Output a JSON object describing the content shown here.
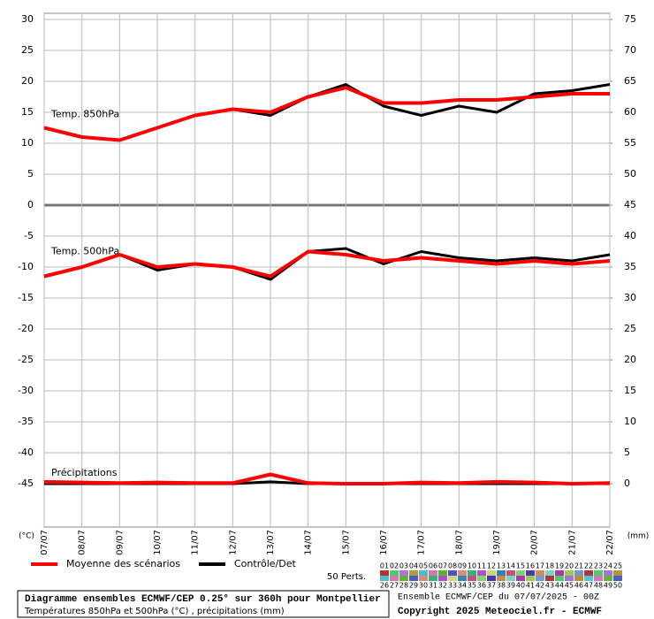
{
  "chart_data": {
    "type": "line",
    "categories": [
      "07/07",
      "08/07",
      "09/07",
      "10/07",
      "11/07",
      "12/07",
      "13/07",
      "14/07",
      "15/07",
      "16/07",
      "17/07",
      "18/07",
      "19/07",
      "20/07",
      "21/07",
      "22/07"
    ],
    "y_label": "(°C)",
    "y2_label": "(mm)",
    "ylim": [
      -52,
      31
    ],
    "yticks": [
      30,
      25,
      20,
      15,
      10,
      5,
      0,
      -5,
      -10,
      -15,
      -20,
      -25,
      -30,
      -35,
      -40,
      -45
    ],
    "y2lim": [
      -7,
      76
    ],
    "y2ticks": [
      75,
      70,
      65,
      60,
      55,
      50,
      45,
      40,
      35,
      30,
      25,
      20,
      15,
      10,
      5,
      0
    ],
    "grid": true,
    "panel_labels": [
      "Temp. 850hPa",
      "Temp. 500hPa",
      "Précipitations"
    ],
    "series": [
      {
        "name": "Moyenne des scénarios",
        "color": "#ff0000",
        "t850": [
          12.5,
          11,
          10.5,
          12.5,
          14.5,
          15.5,
          15,
          17.5,
          19,
          16.5,
          16.5,
          17,
          17,
          17.5,
          18,
          18
        ],
        "t500": [
          -11.5,
          -10,
          -8,
          -10,
          -9.5,
          -10,
          -11.5,
          -7.5,
          -8,
          -9,
          -8.5,
          -9,
          -9.5,
          -9,
          -9.5,
          -9
        ],
        "precip": [
          0.3,
          0.2,
          0.1,
          0.2,
          0.1,
          0.1,
          1.5,
          0.1,
          0,
          0,
          0.2,
          0.1,
          0.3,
          0.2,
          0,
          0.1
        ]
      },
      {
        "name": "Contrôle/Det",
        "color": "#000000",
        "t850": [
          12.5,
          11,
          10.5,
          12.5,
          14.5,
          15.5,
          14.5,
          17.5,
          19.5,
          16,
          14.5,
          16,
          15,
          18,
          18.5,
          19.5
        ],
        "t500": [
          -11.5,
          -10,
          -8,
          -10.5,
          -9.5,
          -10,
          -12,
          -7.5,
          -7,
          -9.5,
          -7.5,
          -8.5,
          -9,
          -8.5,
          -9,
          -8
        ],
        "precip": [
          0,
          0,
          0,
          0,
          0,
          0,
          0.3,
          0,
          0,
          0,
          0,
          0,
          0,
          0,
          0,
          0
        ]
      }
    ],
    "members_label": "50 Perts.",
    "members": [
      "01",
      "02",
      "03",
      "04",
      "05",
      "06",
      "07",
      "08",
      "09",
      "10",
      "11",
      "12",
      "13",
      "14",
      "15",
      "16",
      "17",
      "18",
      "19",
      "20",
      "21",
      "22",
      "23",
      "24",
      "25",
      "26",
      "27",
      "28",
      "29",
      "30",
      "31",
      "32",
      "33",
      "34",
      "35",
      "36",
      "37",
      "38",
      "39",
      "40",
      "41",
      "42",
      "43",
      "44",
      "45",
      "46",
      "47",
      "48",
      "49",
      "50"
    ],
    "footer": {
      "title": "Diagramme ensembles ECMWF/CEP 0.25° sur 360h pour Montpellier",
      "subtitle": "Températures 850hPa et 500hPa (°C) , précipitations (mm)",
      "run": "Ensemble ECMWF/CEP du 07/07/2025 - 00Z",
      "copyright": "Copyright 2025 Meteociel.fr - ECMWF"
    }
  }
}
